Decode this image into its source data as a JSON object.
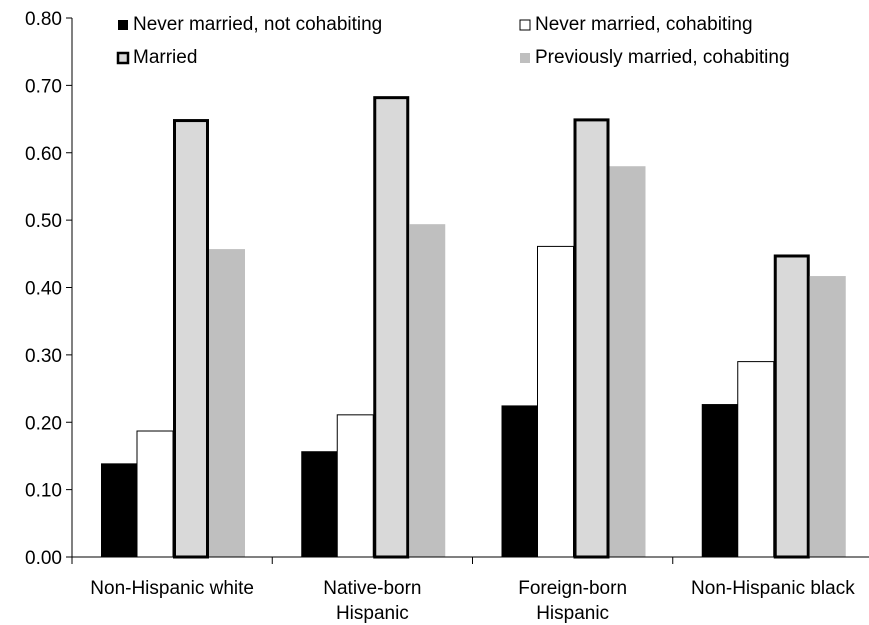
{
  "chart_data": {
    "type": "bar",
    "title": "",
    "xlabel": "",
    "ylabel": "",
    "ylim": [
      0,
      0.8
    ],
    "yticks": [
      "0.00",
      "0.10",
      "0.20",
      "0.30",
      "0.40",
      "0.50",
      "0.60",
      "0.70",
      "0.80"
    ],
    "grid": false,
    "legend_position": "top",
    "categories": [
      [
        "Non-Hispanic white"
      ],
      [
        "Native-born",
        "Hispanic"
      ],
      [
        "Foreign-born",
        "Hispanic"
      ],
      [
        "Non-Hispanic black"
      ]
    ],
    "series": [
      {
        "name": "Never married, not cohabiting",
        "color": "#000000",
        "values": [
          0.139,
          0.157,
          0.225,
          0.227
        ]
      },
      {
        "name": "Never married, cohabiting",
        "color": "#ffffff",
        "values": [
          0.187,
          0.211,
          0.461,
          0.29
        ]
      },
      {
        "name": "Married",
        "color": "#d9d9d9",
        "values": [
          0.65,
          0.684,
          0.651,
          0.449
        ]
      },
      {
        "name": "Previously married, cohabiting",
        "color": "#bfbfbf",
        "values": [
          0.457,
          0.494,
          0.58,
          0.417
        ]
      }
    ]
  }
}
